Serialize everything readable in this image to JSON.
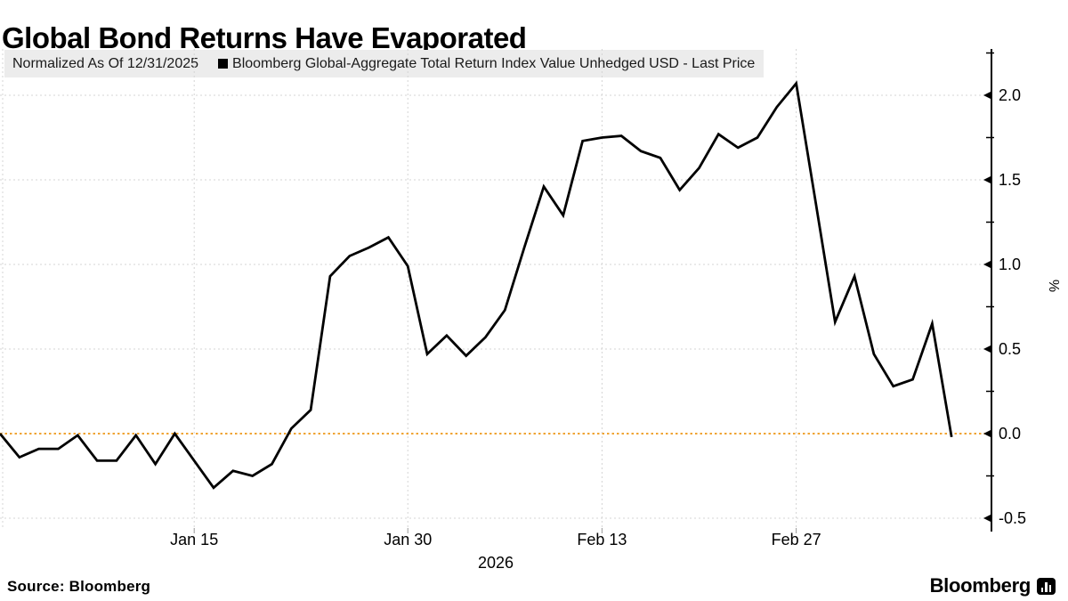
{
  "title": "Global Bond Returns Have Evaporated",
  "legend": {
    "normalized_label": "Normalized As Of 12/31/2025",
    "series_label": "Bloomberg Global-Aggregate Total Return Index Value Unhedged USD - Last Price"
  },
  "chart_data": {
    "type": "line",
    "title": "Global Bond Returns Have Evaporated",
    "ylabel": "%",
    "ylim": [
      -0.75,
      2.25
    ],
    "grid": true,
    "legend_position": "top",
    "x_unit": "trading days from 12/31/2025",
    "series": [
      {
        "name": "Bloomberg Global-Aggregate Total Return Index Value Unhedged USD - Last Price",
        "normalized_as_of": "12/31/2025",
        "values": [
          0.0,
          -0.14,
          -0.09,
          -0.09,
          -0.01,
          -0.16,
          -0.16,
          -0.01,
          -0.18,
          0.0,
          -0.16,
          -0.32,
          -0.22,
          -0.25,
          -0.18,
          0.03,
          0.14,
          0.93,
          1.05,
          1.1,
          1.16,
          0.99,
          0.47,
          0.58,
          0.46,
          0.57,
          0.73,
          1.1,
          1.46,
          1.29,
          1.73,
          1.75,
          1.76,
          1.67,
          1.63,
          1.44,
          1.57,
          1.77,
          1.69,
          1.75,
          1.93,
          2.07,
          1.37,
          0.66,
          0.93,
          0.47,
          0.28,
          0.32,
          0.65,
          -0.02
        ]
      }
    ],
    "x_ticks": [
      {
        "label": "Jan 15",
        "day": 10
      },
      {
        "label": "Jan 30",
        "day": 21
      },
      {
        "label": "Feb 13",
        "day": 31
      },
      {
        "label": "Feb 27",
        "day": 41
      }
    ],
    "x_year_label": "2026",
    "y_ticks": [
      {
        "label": "2.0",
        "value": 2.0
      },
      {
        "label": "1.5",
        "value": 1.5
      },
      {
        "label": "1.0",
        "value": 1.0
      },
      {
        "label": "0.5",
        "value": 0.5
      },
      {
        "label": "0.0",
        "value": 0.0
      },
      {
        "label": "-0.5",
        "value": -0.5
      }
    ],
    "y_minor_tick_values": [
      2.25,
      1.75,
      1.25,
      0.75,
      0.25,
      -0.25
    ],
    "y_gridline_values": [
      2.0,
      1.5,
      1.0,
      0.5,
      -0.5
    ],
    "zero_line_value": 0.0,
    "colors": {
      "line": "#000000",
      "zero_line": "#f0a434",
      "gridline": "#d4d4d4",
      "minor_x_tick": "#9a9a9a",
      "legend_bg": "#ececec",
      "swatch": "#000000",
      "axis": "#000000",
      "text": "#000000"
    }
  },
  "footer": {
    "source": "Source: Bloomberg",
    "logo_text": "Bloomberg",
    "logo_icon": "bar-chart-icon"
  }
}
